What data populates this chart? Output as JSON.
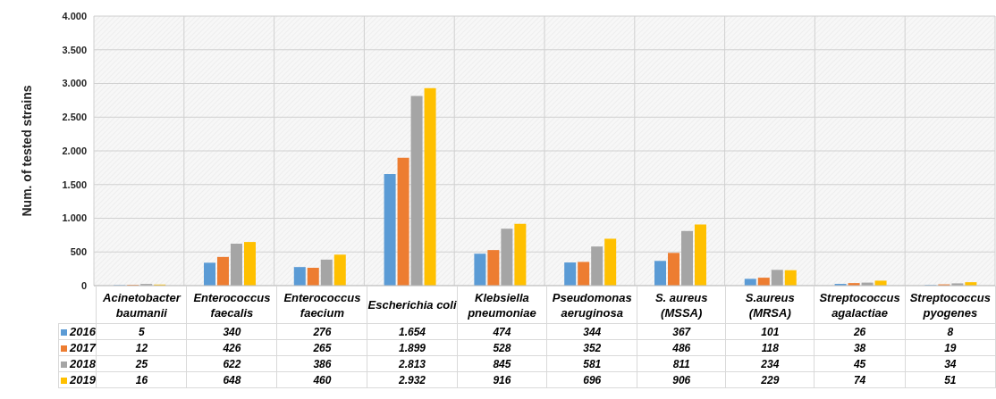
{
  "chart_data": {
    "type": "bar",
    "ylabel": "Num. of tested strains",
    "categories": [
      "Acinetobacter baumanii",
      "Enterococcus faecalis",
      "Enterococcus faecium",
      "Escherichia coli",
      "Klebsiella pneumoniae",
      "Pseudomonas aeruginosa",
      "S. aureus (MSSA)",
      "S.aureus (MRSA)",
      "Streptococcus agalactiae",
      "Streptococcus pyogenes"
    ],
    "series": [
      {
        "name": "2016",
        "color": "#5b9bd5",
        "values": [
          5,
          340,
          276,
          1654,
          474,
          344,
          367,
          101,
          26,
          8
        ],
        "value_labels": [
          "5",
          "340",
          "276",
          "1.654",
          "474",
          "344",
          "367",
          "101",
          "26",
          "8"
        ]
      },
      {
        "name": "2017",
        "color": "#ed7d31",
        "values": [
          12,
          426,
          265,
          1899,
          528,
          352,
          486,
          118,
          38,
          19
        ],
        "value_labels": [
          "12",
          "426",
          "265",
          "1.899",
          "528",
          "352",
          "486",
          "118",
          "38",
          "19"
        ]
      },
      {
        "name": "2018",
        "color": "#a5a5a5",
        "values": [
          25,
          622,
          386,
          2813,
          845,
          581,
          811,
          234,
          45,
          34
        ],
        "value_labels": [
          "25",
          "622",
          "386",
          "2.813",
          "845",
          "581",
          "811",
          "234",
          "45",
          "34"
        ]
      },
      {
        "name": "2019",
        "color": "#ffc000",
        "values": [
          16,
          648,
          460,
          2932,
          916,
          696,
          906,
          229,
          74,
          51
        ],
        "value_labels": [
          "16",
          "648",
          "460",
          "2.932",
          "916",
          "696",
          "906",
          "229",
          "74",
          "51"
        ]
      }
    ],
    "ylim": [
      0,
      4000
    ],
    "yticks": [
      0,
      500,
      {
        "value": 1000,
        "label": "1.000"
      },
      {
        "value": 1500,
        "label": "1.500"
      },
      {
        "value": 2000,
        "label": "2.000"
      },
      {
        "value": 2500,
        "label": "2.500"
      },
      {
        "value": 3000,
        "label": "3.000"
      },
      {
        "value": 3500,
        "label": "3.500"
      },
      {
        "value": 4000,
        "label": "4.000"
      }
    ],
    "grid": true,
    "legend": "bottom"
  }
}
